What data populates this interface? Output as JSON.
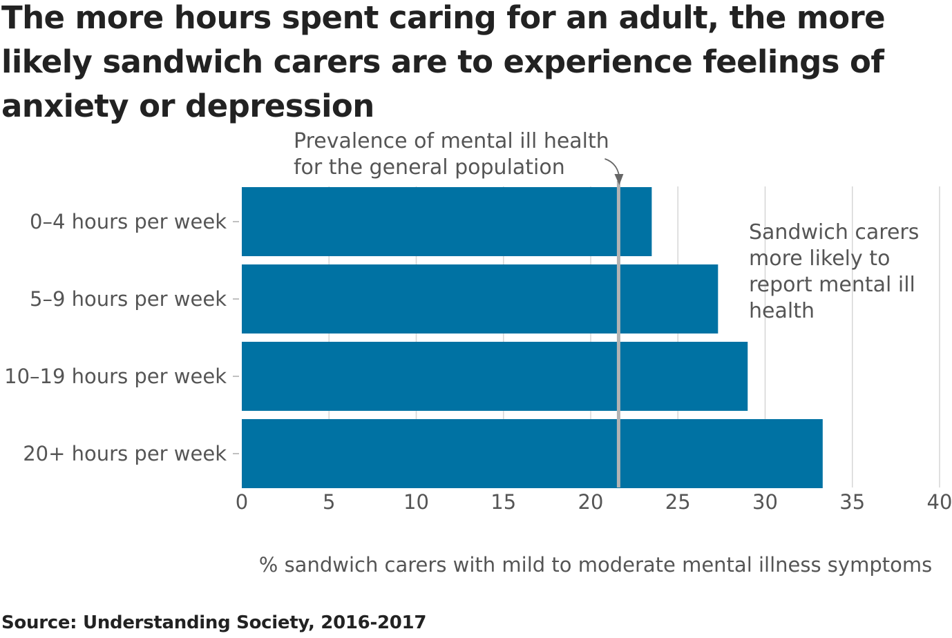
{
  "title": "The more hours spent caring for an adult, the more likely sandwich carers are to experience feelings of anxiety or depression",
  "source": "Source: Understanding Society, 2016-2017",
  "colors": {
    "bar": "#0072a3",
    "reference_line": "#b3b3b3",
    "grid": "#d6d6d6",
    "text": "#555555",
    "title": "#222222"
  },
  "chart_data": {
    "type": "bar",
    "orientation": "horizontal",
    "categories": [
      "0–4 hours per week",
      "5–9 hours per week",
      "10–19 hours per week",
      "20+ hours per week"
    ],
    "values": [
      23.5,
      27.3,
      29.0,
      33.3
    ],
    "xlabel": "% sandwich carers with mild to moderate mental illness symptoms",
    "ylabel": "",
    "xlim": [
      0,
      40
    ],
    "xticks": [
      0,
      5,
      10,
      15,
      20,
      25,
      30,
      35,
      40
    ],
    "grid": true,
    "reference_line": {
      "value": 21.6,
      "label_lines": [
        "Prevalence of mental ill health",
        "for the general population"
      ]
    },
    "annotation": {
      "label_lines": [
        "Sandwich carers",
        "more likely to",
        "report mental ill",
        "health"
      ]
    }
  }
}
